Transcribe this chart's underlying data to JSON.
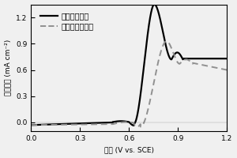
{
  "xlabel": "电势 (V vs. SCE)",
  "ylabel": "电流密度 (mA cm⁻²)",
  "xlim": [
    0.0,
    1.2
  ],
  "ylim": [
    -0.1,
    1.35
  ],
  "xticks": [
    0.0,
    0.3,
    0.6,
    0.9,
    1.2
  ],
  "yticks": [
    0.0,
    0.3,
    0.6,
    0.9,
    1.2
  ],
  "legend": [
    "氧化碳纤维纸",
    "未氧化碳纤维纸"
  ],
  "line1_color": "#000000",
  "line2_color": "#909090",
  "background_color": "#f0f0f0",
  "figsize": [
    3.0,
    2.0
  ],
  "dpi": 100
}
